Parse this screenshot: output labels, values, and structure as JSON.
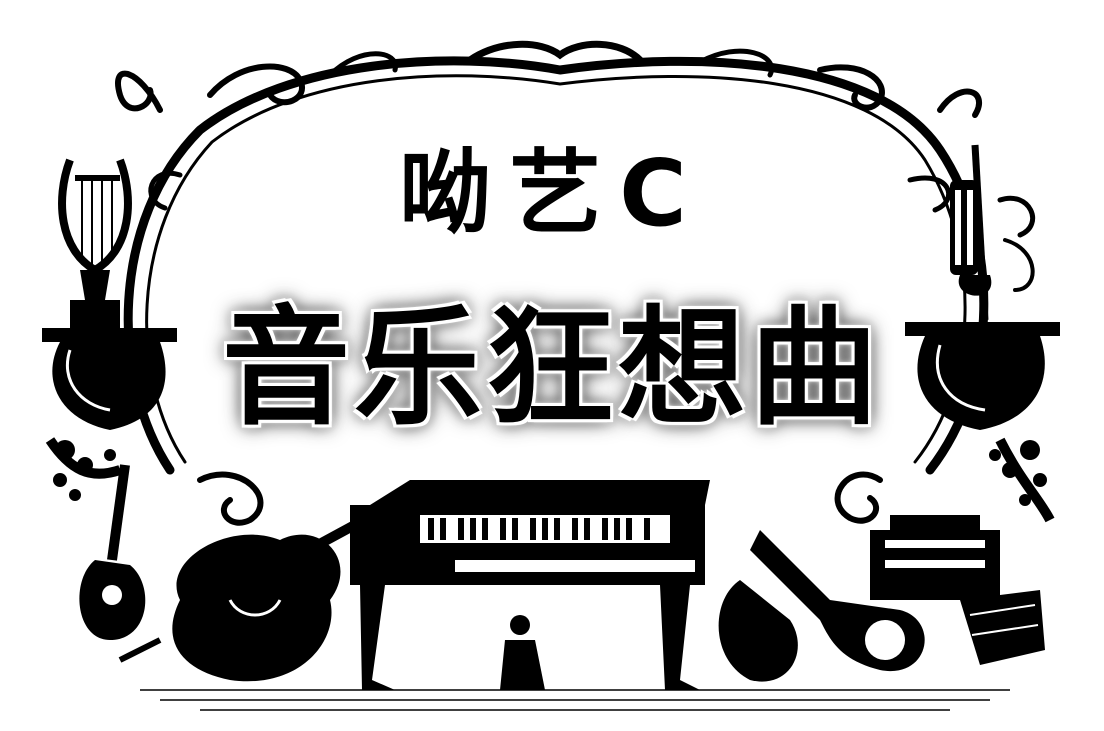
{
  "title": {
    "top": "呦艺C",
    "main": "音乐狂想曲"
  },
  "colors": {
    "ink": "#000000",
    "paper": "#ffffff"
  },
  "icons": [
    "lyre-icon",
    "trumpet-icon",
    "guitar-icon",
    "cello-icon",
    "piano-icon",
    "tuba-icon",
    "accordion-icon",
    "drum-icon"
  ]
}
